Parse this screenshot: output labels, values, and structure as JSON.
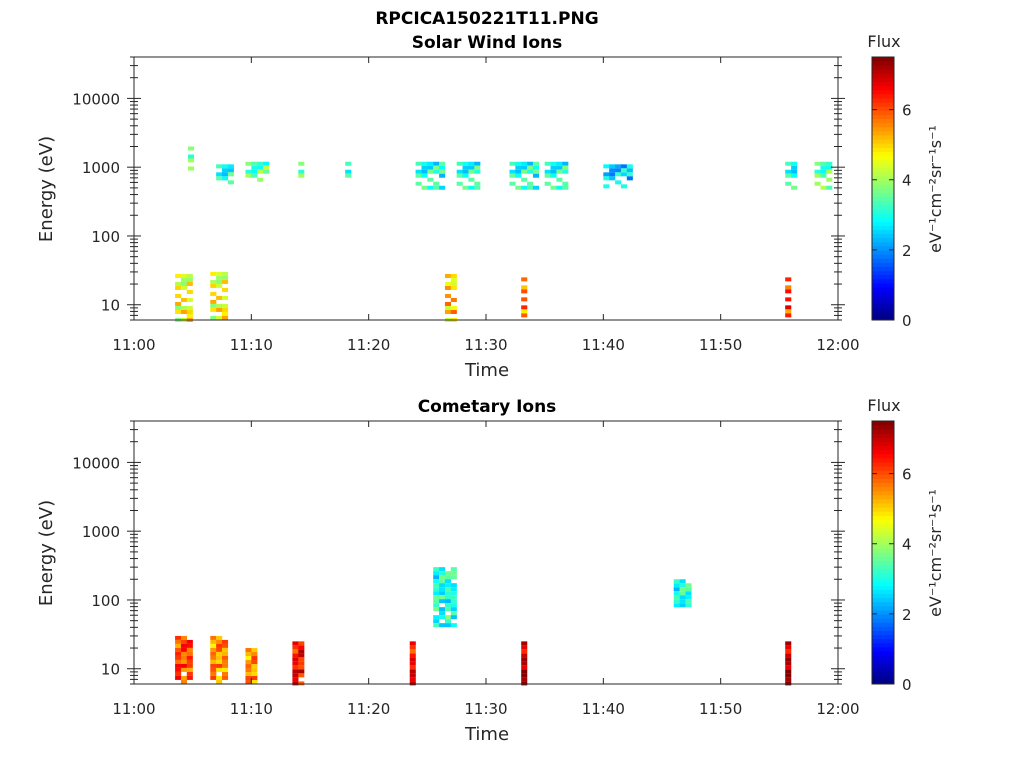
{
  "figure": {
    "title": "RPCICA150221T11.PNG"
  },
  "chart_data": [
    {
      "type": "heatmap",
      "title": "Solar Wind Ions",
      "xlabel": "Time",
      "ylabel": "Energy (eV)",
      "x_ticks": [
        "11:00",
        "11:10",
        "11:20",
        "11:30",
        "11:40",
        "11:50",
        "12:00"
      ],
      "x_range": [
        "11:00",
        "12:00"
      ],
      "y_scale": "log",
      "y_ticks": [
        "10",
        "100",
        "1000",
        "10000"
      ],
      "y_range": [
        6,
        40000
      ],
      "colorbar": {
        "title": "Flux",
        "label": "eV⁻¹cm⁻²sr⁻¹s⁻¹",
        "ticks": [
          "0",
          "2",
          "4",
          "6"
        ],
        "range": [
          0,
          7.5
        ],
        "colormap": "jet"
      },
      "regions": [
        {
          "x": [
            4.6,
            5.0
          ],
          "y": [
            800,
            2000
          ],
          "flux": 3.5
        },
        {
          "x": [
            7.0,
            8.5
          ],
          "y": [
            600,
            1100
          ],
          "flux": 3.0
        },
        {
          "x": [
            9.5,
            11.5
          ],
          "y": [
            600,
            1200
          ],
          "flux": 3.5
        },
        {
          "x": [
            14.0,
            14.5
          ],
          "y": [
            600,
            1200
          ],
          "flux": 3.5
        },
        {
          "x": [
            18.0,
            18.5
          ],
          "y": [
            600,
            1200
          ],
          "flux": 3.0
        },
        {
          "x": [
            24.0,
            26.5
          ],
          "y": [
            500,
            1200
          ],
          "flux": 3.0
        },
        {
          "x": [
            27.5,
            29.5
          ],
          "y": [
            500,
            1200
          ],
          "flux": 3.0
        },
        {
          "x": [
            32.0,
            34.5
          ],
          "y": [
            500,
            1200
          ],
          "flux": 3.0
        },
        {
          "x": [
            35.0,
            37.0
          ],
          "y": [
            500,
            1200
          ],
          "flux": 3.0
        },
        {
          "x": [
            40.0,
            42.5
          ],
          "y": [
            500,
            1100
          ],
          "flux": 2.5
        },
        {
          "x": [
            55.5,
            56.5
          ],
          "y": [
            500,
            1200
          ],
          "flux": 3.0
        },
        {
          "x": [
            58.0,
            59.5
          ],
          "y": [
            500,
            1200
          ],
          "flux": 3.5
        },
        {
          "x": [
            3.5,
            5.0
          ],
          "y": [
            6,
            28
          ],
          "flux": 4.5
        },
        {
          "x": [
            6.5,
            8.0
          ],
          "y": [
            6,
            30
          ],
          "flux": 4.5
        },
        {
          "x": [
            26.5,
            27.5
          ],
          "y": [
            6,
            28
          ],
          "flux": 5.0
        },
        {
          "x": [
            33.0,
            33.5
          ],
          "y": [
            6,
            25
          ],
          "flux": 5.5
        },
        {
          "x": [
            55.5,
            56.0
          ],
          "y": [
            6,
            25
          ],
          "flux": 6.0
        }
      ]
    },
    {
      "type": "heatmap",
      "title": "Cometary Ions",
      "xlabel": "Time",
      "ylabel": "Energy (eV)",
      "x_ticks": [
        "11:00",
        "11:10",
        "11:20",
        "11:30",
        "11:40",
        "11:50",
        "12:00"
      ],
      "x_range": [
        "11:00",
        "12:00"
      ],
      "y_scale": "log",
      "y_ticks": [
        "10",
        "100",
        "1000",
        "10000"
      ],
      "y_range": [
        6,
        40000
      ],
      "colorbar": {
        "title": "Flux",
        "label": "eV⁻¹cm⁻²sr⁻¹s⁻¹",
        "ticks": [
          "0",
          "2",
          "4",
          "6"
        ],
        "range": [
          0,
          7.5
        ],
        "colormap": "jet"
      },
      "regions": [
        {
          "x": [
            3.5,
            5.0
          ],
          "y": [
            6,
            30
          ],
          "flux": 6.0
        },
        {
          "x": [
            6.5,
            8.0
          ],
          "y": [
            6,
            30
          ],
          "flux": 5.5
        },
        {
          "x": [
            9.5,
            10.5
          ],
          "y": [
            6,
            20
          ],
          "flux": 5.5
        },
        {
          "x": [
            13.5,
            14.5
          ],
          "y": [
            6,
            25
          ],
          "flux": 6.5
        },
        {
          "x": [
            23.5,
            24.0
          ],
          "y": [
            6,
            25
          ],
          "flux": 6.5
        },
        {
          "x": [
            33.0,
            33.5
          ],
          "y": [
            6,
            25
          ],
          "flux": 7.0
        },
        {
          "x": [
            55.5,
            56.0
          ],
          "y": [
            6,
            25
          ],
          "flux": 7.0
        },
        {
          "x": [
            25.5,
            27.5
          ],
          "y": [
            40,
            300
          ],
          "flux": 3.0
        },
        {
          "x": [
            46.0,
            47.5
          ],
          "y": [
            80,
            200
          ],
          "flux": 3.0
        }
      ]
    }
  ]
}
